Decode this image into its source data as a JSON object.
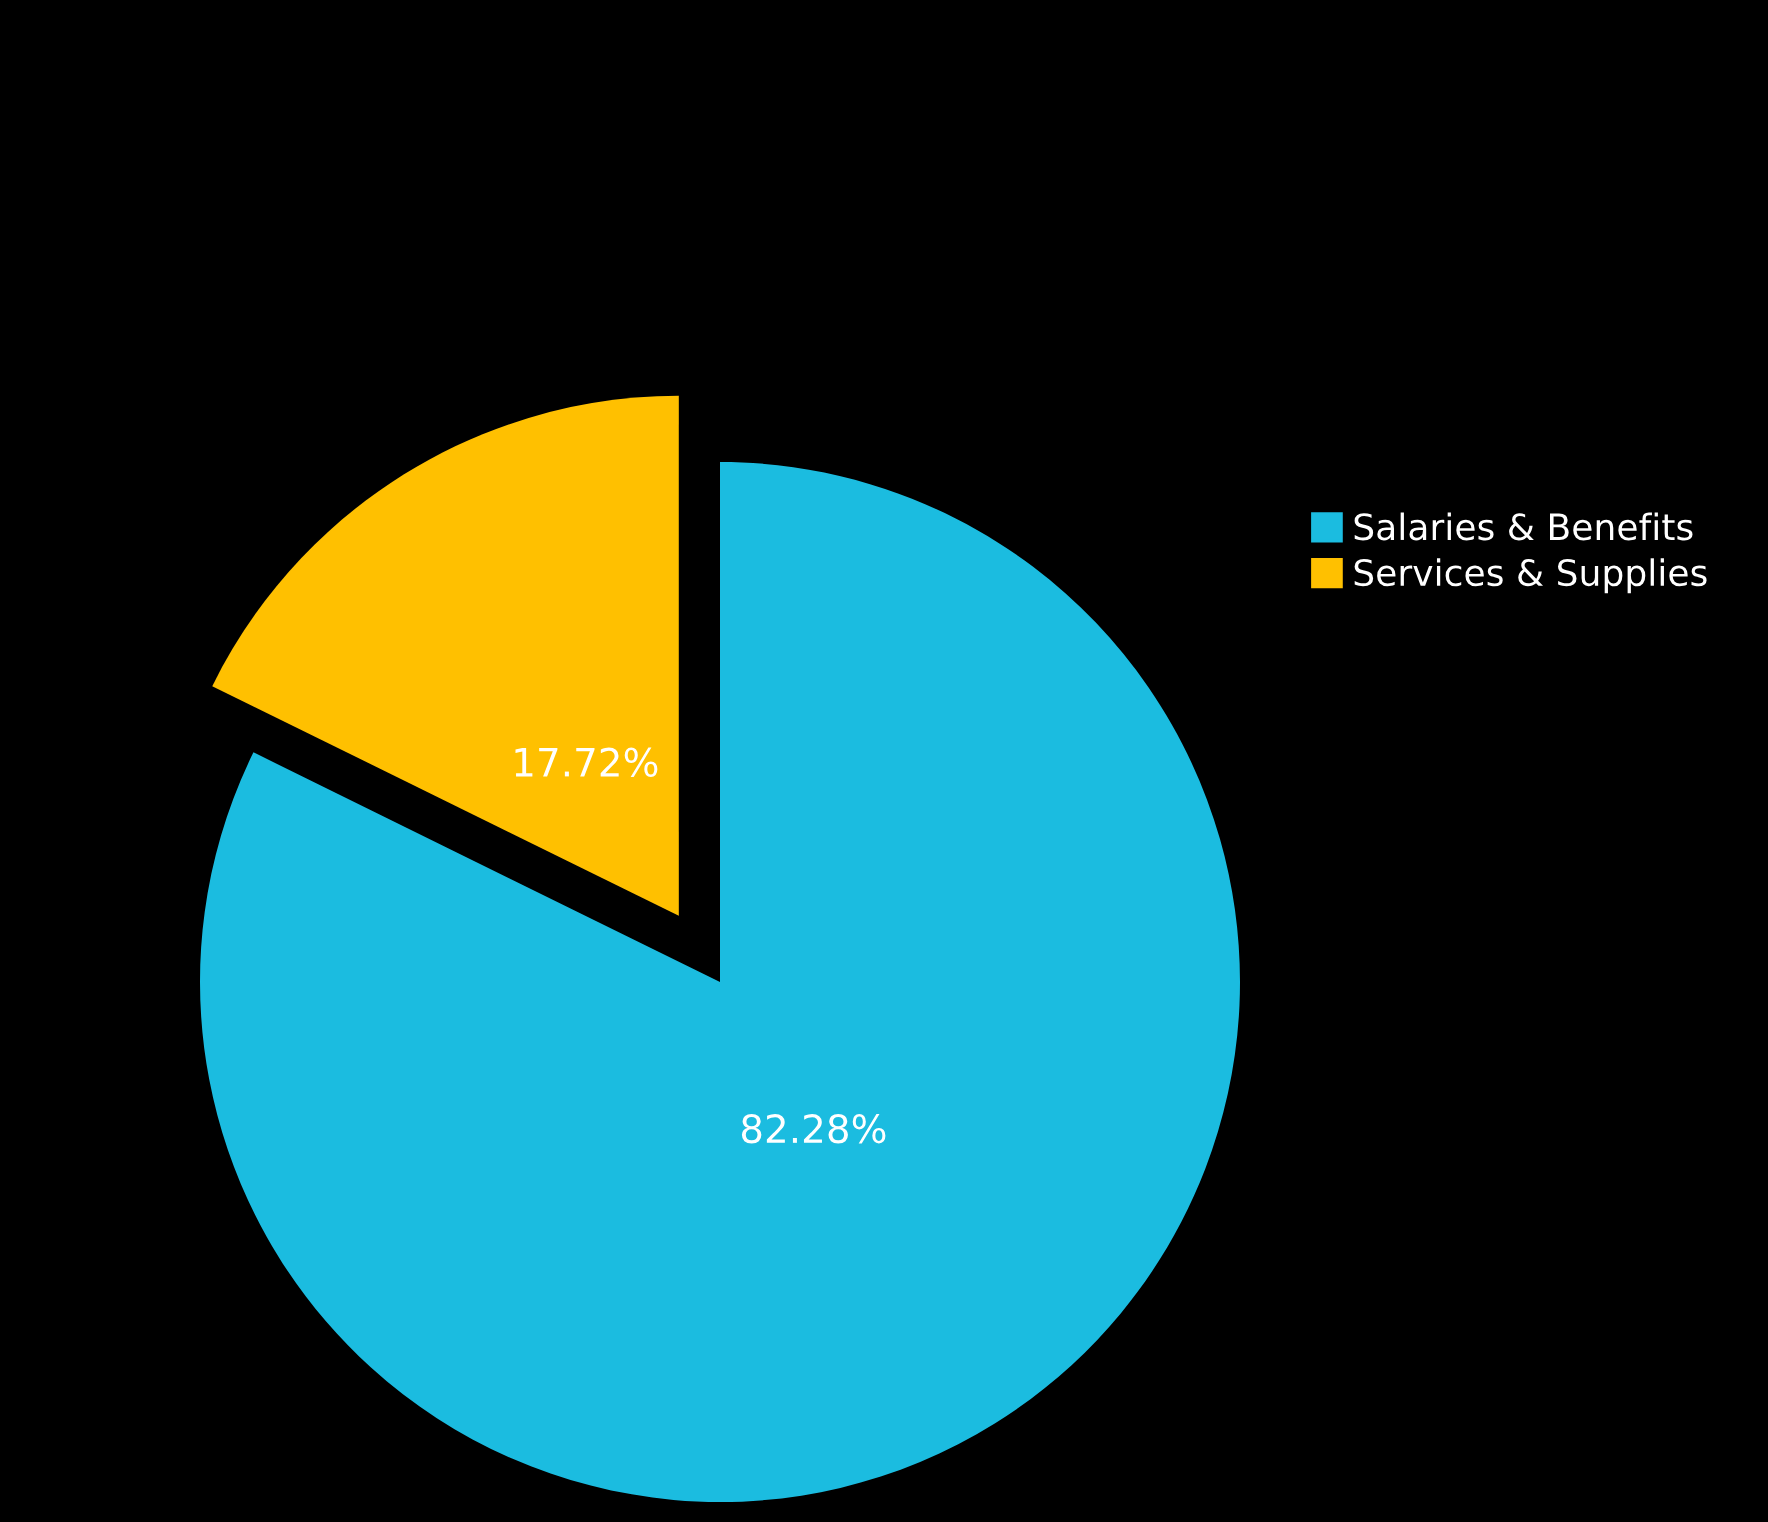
{
  "chart_data": {
    "type": "pie",
    "categories": [
      "Salaries & Benefits",
      "Services & Supplies"
    ],
    "values": [
      82.28,
      17.72
    ],
    "colors": [
      "#1bbce0",
      "#ffc000"
    ],
    "value_labels": [
      "82.28%",
      "17.72%"
    ],
    "legend": "right"
  }
}
